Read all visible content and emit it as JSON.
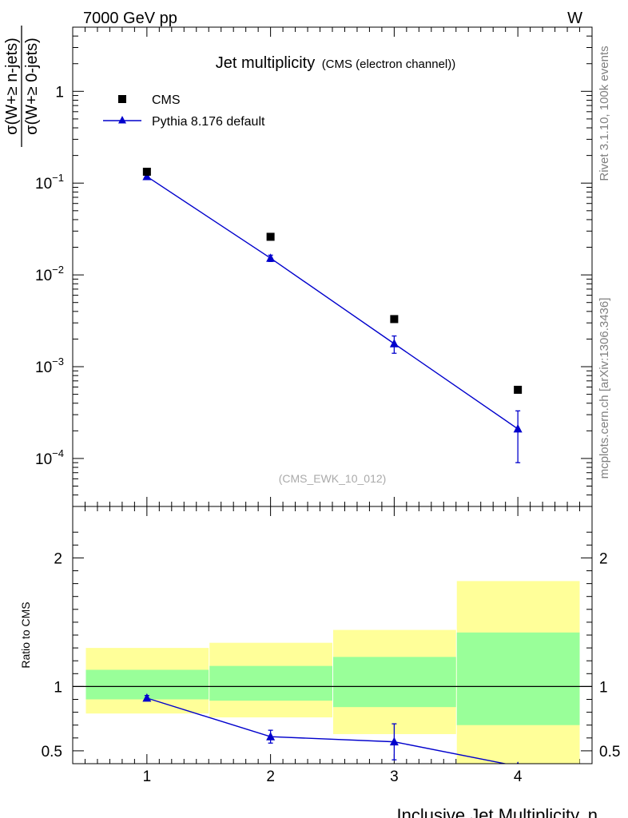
{
  "header": {
    "left": "7000 GeV pp",
    "right": "W"
  },
  "side_labels": {
    "upper": "Rivet 3.1.10,  100k events",
    "lower": "mcplots.cern.ch [arXiv:1306.3436]"
  },
  "chart_data": {
    "type": "scatter",
    "title": "Jet multiplicity",
    "subtitle": "(CMS (electron channel))",
    "watermark": "(CMS_EWK_10_012)",
    "ylabel": "σ(W+≥ n-jets) / σ(W+≥ 0-jets)",
    "ylabel_num": "σ(W+≥ n-jets)",
    "ylabel_den": "σ(W+≥ 0-jets)",
    "xlabel": "Inclusive Jet Multiplicity, n",
    "ratio_ylabel": "Ratio to CMS",
    "x_ticks": [
      "1",
      "2",
      "3",
      "4"
    ],
    "y_ticks_main": [
      {
        "value": 1,
        "base": "1",
        "exp": ""
      },
      {
        "value": 0.1,
        "base": "10",
        "exp": "−1"
      },
      {
        "value": 0.01,
        "base": "10",
        "exp": "−2"
      },
      {
        "value": 0.001,
        "base": "10",
        "exp": "−3"
      },
      {
        "value": 0.0001,
        "base": "10",
        "exp": "−4"
      }
    ],
    "y_ticks_ratio": [
      {
        "value": 2,
        "label": "2"
      },
      {
        "value": 1,
        "label": "1"
      },
      {
        "value": 0.5,
        "label": "0.5"
      }
    ],
    "xlim": [
      0.4,
      4.6
    ],
    "ylim_main": [
      3e-05,
      5
    ],
    "ylim_ratio": [
      0.4,
      2.4
    ],
    "y_log": true,
    "legend_position": "top-left",
    "colors": {
      "cms": "#000000",
      "pythia": "#0000cc",
      "band_inner": "#99ff99",
      "band_outer": "#ffff99"
    },
    "series": [
      {
        "name": "CMS",
        "marker": "square",
        "x": [
          1,
          2,
          3,
          4
        ],
        "y": [
          0.133,
          0.026,
          0.0033,
          0.00056
        ]
      },
      {
        "name": "Pythia 8.176 default",
        "marker": "triangle",
        "x": [
          1,
          2,
          3,
          4
        ],
        "y": [
          0.118,
          0.0152,
          0.00178,
          0.00021
        ],
        "y_err": [
          0.004,
          0.0012,
          0.00038,
          0.00012
        ]
      }
    ],
    "ratio": {
      "bins": [
        {
          "lo": 0.5,
          "hi": 1.5,
          "inner": [
            0.9,
            1.13
          ],
          "outer": [
            0.79,
            1.3
          ]
        },
        {
          "lo": 1.5,
          "hi": 2.5,
          "inner": [
            0.89,
            1.16
          ],
          "outer": [
            0.76,
            1.34
          ]
        },
        {
          "lo": 2.5,
          "hi": 3.5,
          "inner": [
            0.84,
            1.23
          ],
          "outer": [
            0.63,
            1.44
          ]
        },
        {
          "lo": 3.5,
          "hi": 4.5,
          "inner": [
            0.7,
            1.42
          ],
          "outer": [
            0.35,
            1.82
          ]
        }
      ],
      "pythia": {
        "x": [
          1,
          2,
          3,
          4
        ],
        "y": [
          0.91,
          0.61,
          0.57,
          0.38
        ],
        "y_err": [
          0.02,
          0.05,
          0.14,
          0.0
        ]
      }
    }
  }
}
